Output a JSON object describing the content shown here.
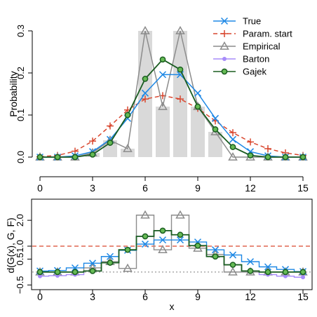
{
  "colors": {
    "True": "#1e88e5",
    "Param. start": "#d9472f",
    "Empirical": "#8c8c8c",
    "Barton": "#a78bfa",
    "Gajek": "#1b5e20",
    "Gajek_fill": "#66bb55",
    "bars": "#d9d9d9",
    "dotted_ref": "#999999"
  },
  "chart_data": [
    {
      "type": "line",
      "panel": "top",
      "ylabel": "Probability",
      "xlim": [
        0,
        15
      ],
      "ylim": [
        0,
        0.3
      ],
      "xticks": [
        0,
        3,
        6,
        9,
        12,
        15
      ],
      "yticks": [
        0.0,
        0.1,
        0.2,
        0.3
      ],
      "ytick_labels": [
        "0.0",
        "0.1",
        "0.2",
        "0.3"
      ],
      "x": [
        0,
        1,
        2,
        3,
        4,
        5,
        6,
        7,
        8,
        9,
        10,
        11,
        12,
        13,
        14,
        15
      ],
      "bars": [
        0,
        0,
        0,
        0.01,
        0.04,
        0.02,
        0.3,
        0.12,
        0.3,
        0.12,
        0.06,
        0,
        0,
        0,
        0,
        0
      ],
      "legend_position": "top-right",
      "series": [
        {
          "name": "True",
          "marker": "x",
          "dash": "solid",
          "values": [
            0.0,
            0.0,
            0.003,
            0.013,
            0.042,
            0.092,
            0.152,
            0.196,
            0.196,
            0.152,
            0.092,
            0.042,
            0.013,
            0.003,
            0.0,
            0.0
          ]
        },
        {
          "name": "Param. start",
          "marker": "plus",
          "dash": "dashed",
          "values": [
            0.001,
            0.004,
            0.014,
            0.038,
            0.074,
            0.112,
            0.138,
            0.146,
            0.138,
            0.116,
            0.086,
            0.058,
            0.036,
            0.02,
            0.01,
            0.004
          ]
        },
        {
          "name": "Empirical",
          "marker": "triangle",
          "dash": "solid",
          "values": [
            0.0,
            0.0,
            0.0,
            0.01,
            0.04,
            0.02,
            0.3,
            0.12,
            0.3,
            0.12,
            0.06,
            0.0,
            0.0,
            0.0,
            0.0,
            0.0
          ]
        },
        {
          "name": "Barton",
          "marker": "dot",
          "dash": "solid",
          "values": [
            0.0,
            0.0,
            0.0,
            0.006,
            0.034,
            0.1,
            0.186,
            0.232,
            0.208,
            0.12,
            0.066,
            0.024,
            0.004,
            0.0,
            0.0,
            0.0
          ]
        },
        {
          "name": "Gajek",
          "marker": "circle",
          "dash": "solid",
          "values": [
            0.0,
            0.0,
            0.0,
            0.006,
            0.034,
            0.1,
            0.186,
            0.232,
            0.208,
            0.12,
            0.066,
            0.024,
            0.004,
            0.0,
            0.0,
            0.0
          ]
        }
      ]
    },
    {
      "type": "step",
      "panel": "bottom",
      "xlabel": "x",
      "ylabel": "d(G(x), G, F)",
      "xlim": [
        0,
        15
      ],
      "ylim": [
        -0.6,
        2.6
      ],
      "xticks": [
        0,
        3,
        6,
        9,
        12,
        15
      ],
      "yticks": [
        -0.5,
        0.5,
        1.0,
        2.0
      ],
      "ytick_labels": [
        "−0.5",
        "0.5",
        "1.0",
        "2.0"
      ],
      "ref_lines": [
        {
          "y": 1.0,
          "series": "Param. start",
          "dash": "dashed"
        },
        {
          "y": 0.0,
          "series": "dotted_ref",
          "dash": "dotted"
        }
      ],
      "x": [
        0,
        1,
        2,
        3,
        4,
        5,
        6,
        7,
        8,
        9,
        10,
        11,
        12,
        13,
        14,
        15
      ],
      "series": [
        {
          "name": "True",
          "marker": "x",
          "values": [
            0.04,
            0.06,
            0.16,
            0.34,
            0.6,
            0.84,
            1.08,
            1.24,
            1.24,
            1.16,
            0.86,
            0.66,
            0.4,
            0.2,
            0.1,
            0.02
          ]
        },
        {
          "name": "Empirical",
          "marker": "triangle",
          "values": [
            0.0,
            0.0,
            0.0,
            0.16,
            0.4,
            0.14,
            2.2,
            0.86,
            2.2,
            0.92,
            0.68,
            0.0,
            0.0,
            0.0,
            0.0,
            0.0
          ]
        },
        {
          "name": "Barton",
          "marker": "dot",
          "values": [
            -0.16,
            -0.14,
            -0.1,
            0.04,
            0.36,
            0.86,
            1.38,
            1.6,
            1.44,
            1.02,
            0.6,
            0.28,
            0.04,
            -0.1,
            -0.16,
            -0.2
          ]
        },
        {
          "name": "Gajek",
          "marker": "circle",
          "values": [
            0.0,
            0.0,
            0.0,
            0.04,
            0.36,
            0.86,
            1.38,
            1.6,
            1.44,
            1.02,
            0.6,
            0.28,
            0.04,
            0.0,
            0.0,
            0.0
          ]
        }
      ]
    }
  ]
}
